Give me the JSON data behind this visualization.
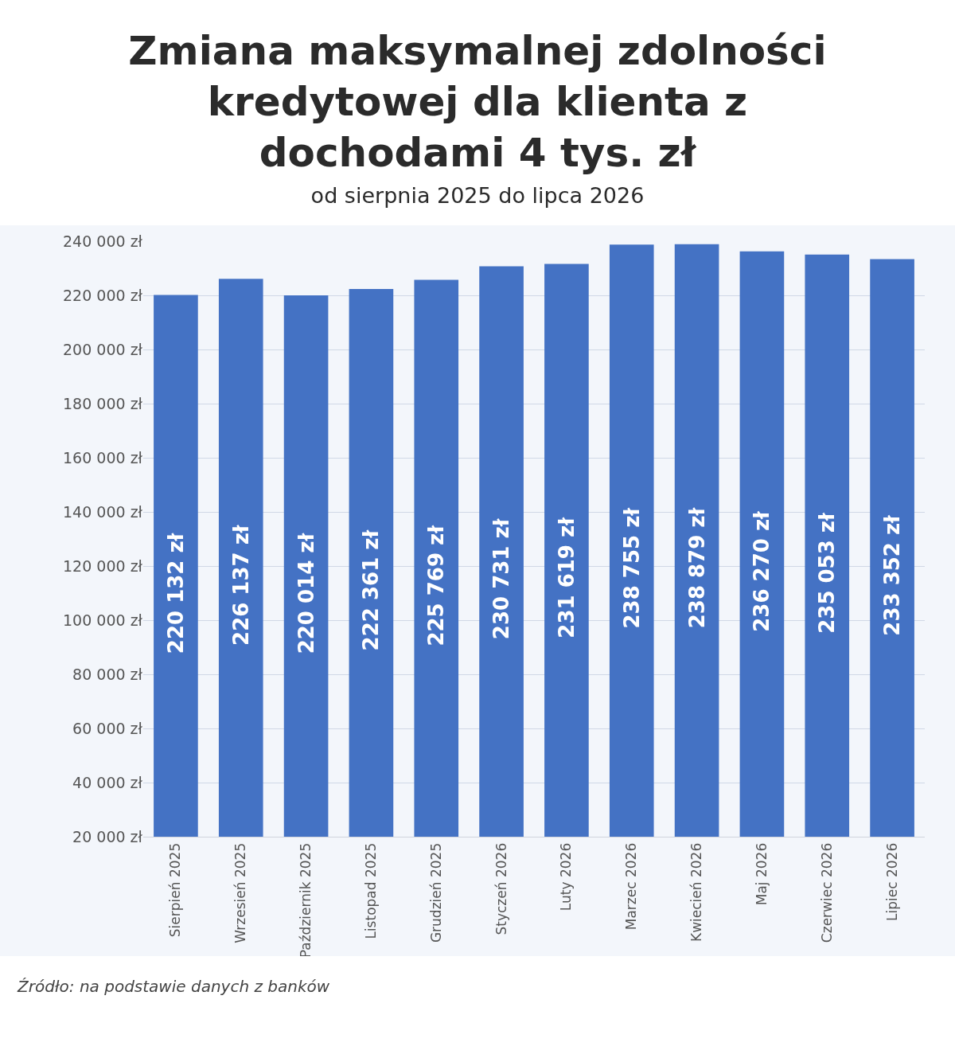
{
  "chart_data": {
    "type": "bar",
    "title": "Zmiana maksymalnej zdolności kredytowej dla klienta z dochodami 4 tys. zł",
    "subtitle": "od sierpnia 2025 do lipca 2026",
    "categories": [
      "Sierpień 2025",
      "Wrzesień 2025",
      "Październik 2025",
      "Listopad 2025",
      "Grudzień 2025",
      "Styczeń 2026",
      "Luty 2026",
      "Marzec 2026",
      "Kwiecień 2026",
      "Maj 2026",
      "Czerwiec 2026",
      "Lipiec 2026"
    ],
    "values": [
      220132,
      226137,
      220014,
      222361,
      225769,
      230731,
      231619,
      238755,
      238879,
      236270,
      235053,
      233352
    ],
    "value_labels": [
      "220 132 zł",
      "226 137 zł",
      "220 014 zł",
      "222 361 zł",
      "225 769 zł",
      "230 731 zł",
      "231 619 zł",
      "238 755 zł",
      "238 879 zł",
      "236 270 zł",
      "235 053 zł",
      "233 352 zł"
    ],
    "color": "#4472c4",
    "ylim": [
      20000,
      240000
    ],
    "yticks": [
      {
        "value": 20000,
        "label": "20 000 zł"
      },
      {
        "value": 40000,
        "label": "40 000 zł"
      },
      {
        "value": 60000,
        "label": "60 000 zł"
      },
      {
        "value": 80000,
        "label": "80 000 zł"
      },
      {
        "value": 100000,
        "label": "100 000 zł"
      },
      {
        "value": 120000,
        "label": "120 000 zł"
      },
      {
        "value": 140000,
        "label": "140 000 zł"
      },
      {
        "value": 160000,
        "label": "160 000 zł"
      },
      {
        "value": 180000,
        "label": "180 000 zł"
      },
      {
        "value": 200000,
        "label": "200 000 zł"
      },
      {
        "value": 220000,
        "label": "220 000 zł"
      },
      {
        "value": 240000,
        "label": "240 000 zł"
      }
    ],
    "grid": "y",
    "annotations": [
      "Źródło: na podstawie danych z banków"
    ]
  }
}
